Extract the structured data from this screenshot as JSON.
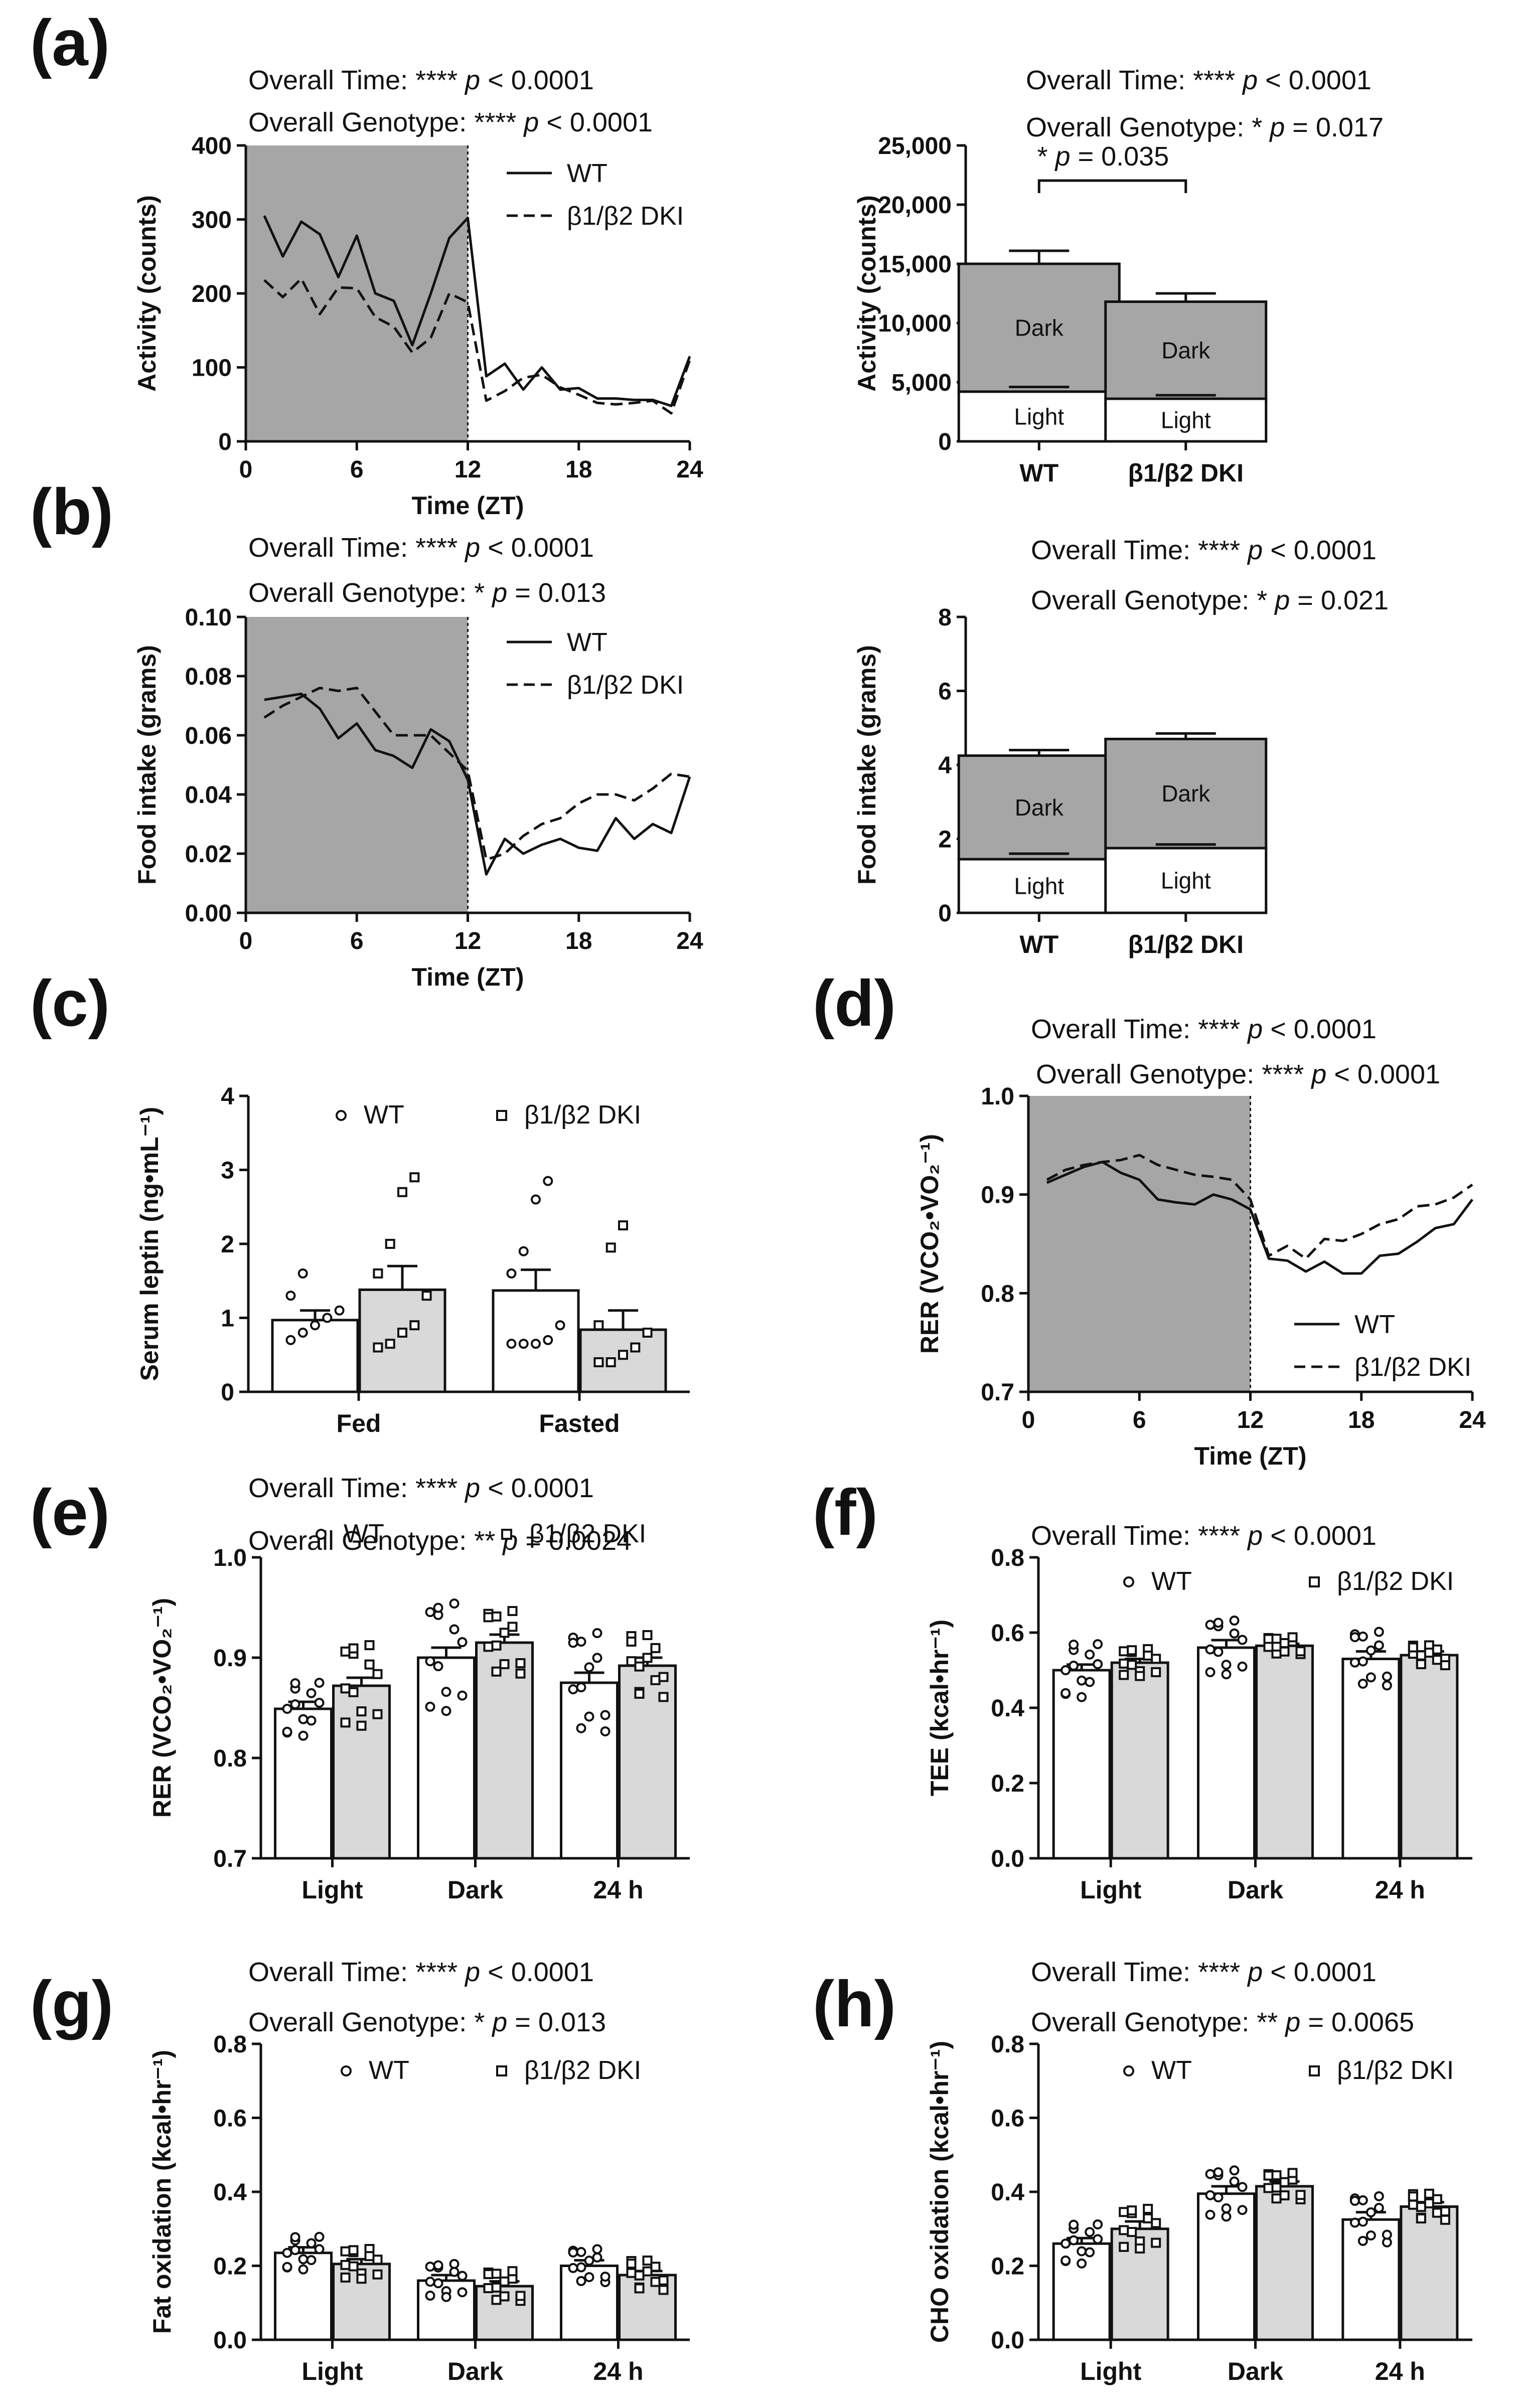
{
  "colors": {
    "dark_shade": "#a6a6a6",
    "bar_gray": "#d9d9d9",
    "bar_dark": "#a6a6a6",
    "ink": "#111111",
    "white": "#ffffff"
  },
  "chart_data": [
    {
      "id": "a-left",
      "panel_label": "(a)",
      "type": "line",
      "stats": [
        "Overall Time: **** p < 0.0001",
        "Overall Genotype: **** p < 0.0001"
      ],
      "xlabel": "Time (ZT)",
      "ylabel": "Activity (counts)",
      "xlim": [
        0,
        24
      ],
      "ylim": [
        0,
        400
      ],
      "xticks": [
        0,
        6,
        12,
        18,
        24
      ],
      "yticks": [
        0,
        100,
        200,
        300,
        400
      ],
      "shade": [
        0,
        12
      ],
      "legend": [
        "WT",
        "β1/β2 DKI"
      ],
      "x": [
        1,
        2,
        3,
        4,
        5,
        6,
        7,
        8,
        9,
        10,
        11,
        12,
        13,
        14,
        15,
        16,
        17,
        18,
        19,
        20,
        21,
        22,
        23,
        24
      ],
      "series": [
        {
          "name": "WT",
          "style": "solid",
          "values": [
            305,
            250,
            297,
            280,
            222,
            278,
            200,
            190,
            130,
            200,
            275,
            302,
            88,
            105,
            70,
            100,
            70,
            72,
            58,
            58,
            56,
            56,
            48,
            115
          ]
        },
        {
          "name": "β1/β2 DKI",
          "style": "dashed",
          "values": [
            218,
            195,
            220,
            172,
            208,
            207,
            168,
            155,
            120,
            140,
            200,
            188,
            55,
            68,
            86,
            90,
            73,
            63,
            52,
            50,
            52,
            55,
            38,
            110
          ]
        }
      ]
    },
    {
      "id": "a-right",
      "panel_label": "",
      "type": "bar",
      "stats": [
        "Overall Time: **** p < 0.0001",
        "Overall Genotype: * p = 0.017"
      ],
      "annotation": "* p = 0.035",
      "categories": [
        "WT",
        "β1/β2 DKI"
      ],
      "ylabel": "Activity (counts)",
      "ylim": [
        0,
        25000
      ],
      "yticks": [
        0,
        5000,
        10000,
        15000,
        20000,
        25000
      ],
      "ytick_labels": [
        "0",
        "5,000",
        "10,000",
        "15,000",
        "20,000",
        "25,000"
      ],
      "stack_names": [
        "Light",
        "Dark"
      ],
      "light": [
        4200,
        3600
      ],
      "light_err": [
        4600,
        3900
      ],
      "total": [
        15000,
        11800
      ],
      "total_err": [
        16100,
        12500
      ]
    },
    {
      "id": "b-left",
      "panel_label": "(b)",
      "type": "line",
      "stats": [
        "Overall Time: **** p < 0.0001",
        "Overall Genotype: * p = 0.013"
      ],
      "xlabel": "Time (ZT)",
      "ylabel": "Food intake (grams)",
      "xlim": [
        0,
        24
      ],
      "ylim": [
        0,
        0.1
      ],
      "xticks": [
        0,
        6,
        12,
        18,
        24
      ],
      "yticks": [
        0,
        0.02,
        0.04,
        0.06,
        0.08,
        0.1
      ],
      "ytick_labels": [
        "0.00",
        "0.02",
        "0.04",
        "0.06",
        "0.08",
        "0.10"
      ],
      "shade": [
        0,
        12
      ],
      "legend": [
        "WT",
        "β1/β2 DKI"
      ],
      "x": [
        1,
        2,
        3,
        4,
        5,
        6,
        7,
        8,
        9,
        10,
        11,
        12,
        13,
        14,
        15,
        16,
        17,
        18,
        19,
        20,
        21,
        22,
        23,
        24
      ],
      "series": [
        {
          "name": "WT",
          "style": "solid",
          "values": [
            0.072,
            0.073,
            0.074,
            0.069,
            0.059,
            0.064,
            0.055,
            0.053,
            0.049,
            0.062,
            0.058,
            0.045,
            0.013,
            0.025,
            0.02,
            0.023,
            0.025,
            0.022,
            0.021,
            0.032,
            0.025,
            0.03,
            0.027,
            0.046
          ]
        },
        {
          "name": "β1/β2 DKI",
          "style": "dashed",
          "values": [
            0.066,
            0.07,
            0.073,
            0.076,
            0.075,
            0.076,
            0.068,
            0.06,
            0.06,
            0.06,
            0.054,
            0.048,
            0.018,
            0.02,
            0.026,
            0.03,
            0.032,
            0.037,
            0.04,
            0.04,
            0.038,
            0.042,
            0.047,
            0.046
          ]
        }
      ]
    },
    {
      "id": "b-right",
      "panel_label": "",
      "type": "bar",
      "stats": [
        "Overall Time: **** p < 0.0001",
        "Overall Genotype: * p = 0.021"
      ],
      "categories": [
        "WT",
        "β1/β2 DKI"
      ],
      "ylabel": "Food intake (grams)",
      "ylim": [
        0,
        8
      ],
      "yticks": [
        0,
        2,
        4,
        6,
        8
      ],
      "ytick_labels": [
        "0",
        "2",
        "4",
        "6",
        "8"
      ],
      "stack_names": [
        "Light",
        "Dark"
      ],
      "light": [
        1.45,
        1.75
      ],
      "light_err": [
        1.6,
        1.85
      ],
      "total": [
        4.25,
        4.7
      ],
      "total_err": [
        4.4,
        4.85
      ]
    },
    {
      "id": "c",
      "panel_label": "(c)",
      "type": "bar",
      "stats": [],
      "categories": [
        "Fed",
        "Fasted"
      ],
      "legend": [
        "WT",
        "β1/β2 DKI"
      ],
      "ylabel": "Serum leptin (ng•mL⁻¹)",
      "ylim": [
        0,
        4
      ],
      "yticks": [
        0,
        1,
        2,
        3,
        4
      ],
      "ytick_labels": [
        "0",
        "1",
        "2",
        "3",
        "4"
      ],
      "series": [
        {
          "name": "WT",
          "values": [
            0.97,
            1.37
          ],
          "err": [
            1.1,
            1.65
          ],
          "points": [
            [
              0.7,
              0.8,
              0.9,
              1.0,
              1.1,
              1.3,
              1.6
            ],
            [
              0.65,
              0.65,
              0.65,
              0.7,
              0.9,
              1.6,
              1.9,
              2.6,
              2.85
            ]
          ]
        },
        {
          "name": "β1/β2 DKI",
          "values": [
            1.38,
            0.84
          ],
          "err": [
            1.7,
            1.1
          ],
          "points": [
            [
              0.6,
              0.65,
              0.8,
              0.9,
              1.3,
              1.6,
              2.0,
              2.7,
              2.9
            ],
            [
              0.4,
              0.4,
              0.5,
              0.6,
              0.8,
              0.9,
              1.95,
              2.25
            ]
          ]
        }
      ]
    },
    {
      "id": "d",
      "panel_label": "(d)",
      "type": "line",
      "stats": [
        "Overall Time: **** p < 0.0001",
        "Overall Genotype: **** p < 0.0001"
      ],
      "xlabel": "Time (ZT)",
      "ylabel": "RER (VCO₂•VO₂⁻¹)",
      "xlim": [
        0,
        24
      ],
      "ylim": [
        0.7,
        1.0
      ],
      "xticks": [
        0,
        6,
        12,
        18,
        24
      ],
      "yticks": [
        0.7,
        0.8,
        0.9,
        1.0
      ],
      "ytick_labels": [
        "0.7",
        "0.8",
        "0.9",
        "1.0"
      ],
      "shade": [
        0,
        12
      ],
      "legend": [
        "WT",
        "β1/β2 DKI"
      ],
      "x": [
        1,
        2,
        3,
        4,
        5,
        6,
        7,
        8,
        9,
        10,
        11,
        12,
        13,
        14,
        15,
        16,
        17,
        18,
        19,
        20,
        21,
        22,
        23,
        24
      ],
      "series": [
        {
          "name": "WT",
          "style": "solid",
          "values": [
            0.912,
            0.92,
            0.928,
            0.933,
            0.922,
            0.915,
            0.895,
            0.892,
            0.89,
            0.9,
            0.895,
            0.885,
            0.835,
            0.833,
            0.822,
            0.832,
            0.82,
            0.82,
            0.838,
            0.84,
            0.852,
            0.866,
            0.87,
            0.895
          ]
        },
        {
          "name": "β1/β2 DKI",
          "style": "dashed",
          "values": [
            0.915,
            0.925,
            0.93,
            0.933,
            0.935,
            0.94,
            0.93,
            0.925,
            0.92,
            0.918,
            0.915,
            0.895,
            0.838,
            0.848,
            0.835,
            0.855,
            0.853,
            0.86,
            0.87,
            0.875,
            0.888,
            0.89,
            0.897,
            0.91
          ]
        }
      ]
    },
    {
      "id": "e",
      "panel_label": "(e)",
      "type": "bar",
      "stats": [
        "Overall Time: **** p < 0.0001",
        "Overall Genotype: ** p = 0.0024"
      ],
      "categories": [
        "Light",
        "Dark",
        "24 h"
      ],
      "legend": [
        "WT",
        "β1/β2 DKI"
      ],
      "ylabel": "RER (VCO₂•VO₂⁻¹)",
      "ylim": [
        0.7,
        1.0
      ],
      "yticks": [
        0.7,
        0.8,
        0.9,
        1.0
      ],
      "ytick_labels": [
        "0.7",
        "0.8",
        "0.9",
        "1.0"
      ],
      "series": [
        {
          "name": "WT",
          "values": [
            0.849,
            0.9,
            0.875
          ],
          "err": [
            0.856,
            0.91,
            0.885
          ],
          "spread": [
            0.03,
            0.06,
            0.055
          ]
        },
        {
          "name": "β1/β2 DKI",
          "values": [
            0.872,
            0.915,
            0.892
          ],
          "err": [
            0.88,
            0.923,
            0.9
          ],
          "spread": [
            0.045,
            0.035,
            0.035
          ]
        }
      ]
    },
    {
      "id": "f",
      "panel_label": "(f)",
      "type": "bar",
      "stats": [
        "Overall Time: **** p < 0.0001"
      ],
      "categories": [
        "Light",
        "Dark",
        "24 h"
      ],
      "legend": [
        "WT",
        "β1/β2 DKI"
      ],
      "ylabel": "TEE (kcal•hr⁻¹)",
      "ylim": [
        0,
        0.8
      ],
      "yticks": [
        0,
        0.2,
        0.4,
        0.6,
        0.8
      ],
      "ytick_labels": [
        "0.0",
        "0.2",
        "0.4",
        "0.6",
        "0.8"
      ],
      "series": [
        {
          "name": "WT",
          "values": [
            0.5,
            0.56,
            0.53
          ],
          "err": [
            0.515,
            0.58,
            0.55
          ],
          "spread": [
            0.08,
            0.08,
            0.08
          ]
        },
        {
          "name": "β1/β2 DKI",
          "values": [
            0.52,
            0.565,
            0.54
          ],
          "err": [
            0.53,
            0.57,
            0.55
          ],
          "spread": [
            0.04,
            0.025,
            0.03
          ]
        }
      ]
    },
    {
      "id": "g",
      "panel_label": "(g)",
      "type": "bar",
      "stats": [
        "Overall Time: **** p < 0.0001",
        "Overall Genotype: * p = 0.013"
      ],
      "categories": [
        "Light",
        "Dark",
        "24 h"
      ],
      "legend": [
        "WT",
        "β1/β2 DKI"
      ],
      "ylabel": "Fat oxidation (kcal•hr⁻¹)",
      "ylim": [
        0,
        0.8
      ],
      "yticks": [
        0,
        0.2,
        0.4,
        0.6,
        0.8
      ],
      "ytick_labels": [
        "0.0",
        "0.2",
        "0.4",
        "0.6",
        "0.8"
      ],
      "series": [
        {
          "name": "WT",
          "values": [
            0.235,
            0.16,
            0.2
          ],
          "err": [
            0.25,
            0.175,
            0.215
          ],
          "spread": [
            0.05,
            0.05,
            0.05
          ]
        },
        {
          "name": "β1/β2 DKI",
          "values": [
            0.205,
            0.145,
            0.175
          ],
          "err": [
            0.218,
            0.158,
            0.186
          ],
          "spread": [
            0.045,
            0.045,
            0.045
          ]
        }
      ]
    },
    {
      "id": "h",
      "panel_label": "(h)",
      "type": "bar",
      "stats": [
        "Overall Time: **** p < 0.0001",
        "Overall Genotype: ** p = 0.0065"
      ],
      "categories": [
        "Light",
        "Dark",
        "24 h"
      ],
      "legend": [
        "WT",
        "β1/β2 DKI"
      ],
      "ylabel": "CHO oxidation (kcal•hr⁻¹)",
      "ylim": [
        0,
        0.8
      ],
      "yticks": [
        0,
        0.2,
        0.4,
        0.6,
        0.8
      ],
      "ytick_labels": [
        "0.0",
        "0.2",
        "0.4",
        "0.6",
        "0.8"
      ],
      "series": [
        {
          "name": "WT",
          "values": [
            0.26,
            0.395,
            0.325
          ],
          "err": [
            0.275,
            0.415,
            0.345
          ],
          "spread": [
            0.06,
            0.07,
            0.07
          ]
        },
        {
          "name": "β1/β2 DKI",
          "values": [
            0.3,
            0.415,
            0.36
          ],
          "err": [
            0.32,
            0.428,
            0.372
          ],
          "spread": [
            0.06,
            0.04,
            0.04
          ]
        }
      ]
    }
  ]
}
